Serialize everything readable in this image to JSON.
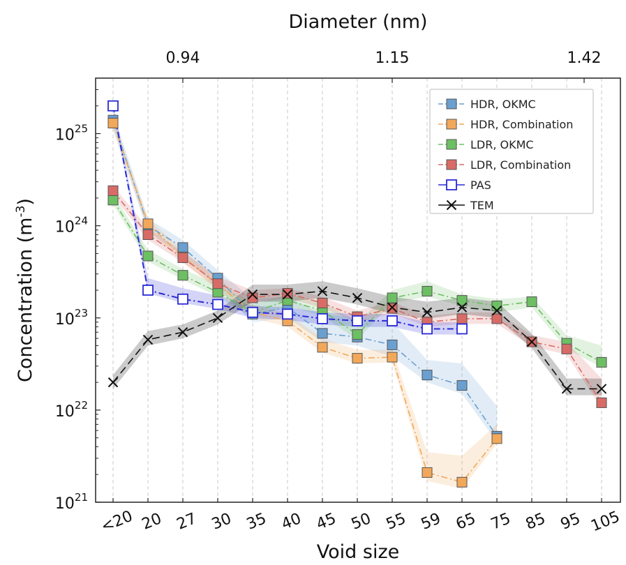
{
  "chart_data": {
    "type": "line",
    "xlabel": "Void size",
    "x2label": "Diameter (nm)",
    "ylabel_base": "Concentration (m",
    "ylabel_exp": "-3",
    "ylabel_close": ")",
    "categories": [
      "<20",
      "20",
      "27",
      "30",
      "35",
      "40",
      "45",
      "50",
      "55",
      "59",
      "65",
      "75",
      "85",
      "95",
      "105"
    ],
    "top_ticks": [
      {
        "label": "0.94",
        "category_index": 2
      },
      {
        "label": "1.15",
        "category_index": 8
      },
      {
        "label": "1.42",
        "category_index": 13.5
      }
    ],
    "y_scale": "log",
    "ylim": [
      1e+21,
      4e+25
    ],
    "y_ticks": [
      {
        "base": "10",
        "exp": "21",
        "value": 1e+21
      },
      {
        "base": "10",
        "exp": "22",
        "value": 1e+22
      },
      {
        "base": "10",
        "exp": "23",
        "value": 1e+23
      },
      {
        "base": "10",
        "exp": "24",
        "value": 1e+24
      },
      {
        "base": "10",
        "exp": "25",
        "value": 1e+25
      }
    ],
    "grid": "vertical dashed",
    "legend_position": "top-right",
    "series": [
      {
        "name": "HDR, OKMC",
        "color": "#6a9fd0",
        "marker": "filled-square",
        "line": "dash-dot",
        "values": [
          1.4e+25,
          1e+24,
          5.8e+23,
          2.7e+23,
          1.1e+23,
          1.3e+23,
          6.8e+22,
          6.2e+22,
          5.1e+22,
          2.4e+22,
          1.85e+22,
          5.2e+21,
          null,
          null,
          null
        ],
        "band_upper": [
          1.7e+25,
          1.2e+24,
          7e+23,
          3.3e+23,
          1.6e+23,
          1.7e+23,
          1.1e+23,
          1e+23,
          9e+22,
          3.5e+22,
          3.2e+22,
          1.1e+22,
          null,
          null,
          null
        ],
        "band_lower": [
          1.1e+25,
          8.5e+23,
          4.8e+23,
          2.1e+23,
          9e+22,
          1e+23,
          5.5e+22,
          5e+22,
          3.8e+22,
          2e+22,
          1.5e+22,
          4.5e+21,
          null,
          null,
          null
        ]
      },
      {
        "name": "HDR, Combination",
        "color": "#f2a85a",
        "marker": "filled-square",
        "line": "dash-dot",
        "values": [
          1.3e+25,
          1.05e+24,
          4.6e+23,
          2.3e+23,
          1.15e+23,
          9.3e+22,
          4.8e+22,
          3.65e+22,
          3.75e+22,
          2.1e+21,
          1.65e+21,
          4.9e+21,
          null,
          null,
          null
        ],
        "band_upper": [
          1.45e+25,
          1.2e+24,
          5.4e+23,
          2.7e+23,
          1.4e+23,
          1.1e+23,
          6e+22,
          4.5e+22,
          4.5e+22,
          3.5e+21,
          3.2e+21,
          7e+21,
          null,
          null,
          null
        ],
        "band_lower": [
          1.15e+25,
          9e+23,
          4e+23,
          2e+23,
          1e+23,
          8e+22,
          4.2e+22,
          3.2e+22,
          3.3e+22,
          1.7e+21,
          1.4e+21,
          4.3e+21,
          null,
          null,
          null
        ]
      },
      {
        "name": "LDR, OKMC",
        "color": "#6dbf63",
        "marker": "filled-square",
        "line": "dash-dot",
        "values": [
          1.9e+24,
          4.7e+23,
          2.9e+23,
          1.9e+23,
          1.15e+23,
          1.55e+23,
          1.2e+23,
          6.6e+22,
          1.65e+23,
          1.95e+23,
          1.55e+23,
          1.35e+23,
          1.5e+23,
          5.3e+22,
          3.3e+22
        ],
        "band_upper": [
          2.2e+24,
          5.5e+23,
          3.4e+23,
          2.3e+23,
          1.4e+23,
          1.8e+23,
          1.5e+23,
          9e+22,
          2e+23,
          2.5e+23,
          1.8e+23,
          1.6e+23,
          1.7e+23,
          6.5e+22,
          5e+22
        ],
        "band_lower": [
          1.7e+24,
          4.1e+23,
          2.6e+23,
          1.7e+23,
          1e+23,
          1.35e+23,
          1.05e+23,
          5.8e+22,
          1.45e+23,
          1.7e+23,
          1.35e+23,
          1.15e+23,
          1.3e+23,
          4.6e+22,
          2.9e+22
        ]
      },
      {
        "name": "LDR, Combination",
        "color": "#d86b66",
        "marker": "filled-square",
        "line": "dash-dot",
        "values": [
          2.4e+24,
          8e+23,
          4.5e+23,
          2.35e+23,
          1.65e+23,
          1.85e+23,
          1.45e+23,
          1.03e+23,
          1.27e+23,
          9e+22,
          9.8e+22,
          9.8e+22,
          5.5e+22,
          4.6e+22,
          1.2e+22
        ],
        "band_upper": [
          2.7e+24,
          9.5e+23,
          5.2e+23,
          2.8e+23,
          2e+23,
          2.1e+23,
          1.7e+23,
          1.2e+23,
          1.5e+23,
          1.05e+23,
          1.15e+23,
          1.15e+23,
          6.5e+22,
          5.5e+22,
          2.2e+22
        ],
        "band_lower": [
          2.1e+24,
          7e+23,
          4e+23,
          2.1e+23,
          1.45e+23,
          1.65e+23,
          1.28e+23,
          9e+22,
          1.12e+23,
          8e+22,
          8.6e+22,
          8.6e+22,
          4.9e+22,
          4e+22,
          1.05e+22
        ]
      },
      {
        "name": "PAS",
        "color": "#2a2ad6",
        "marker": "open-square",
        "line": "dash-dot",
        "values": [
          2e+25,
          2e+23,
          1.6e+23,
          1.4e+23,
          1.15e+23,
          1.1e+23,
          9.8e+22,
          9.3e+22,
          9.3e+22,
          7.6e+22,
          7.6e+22,
          null,
          null,
          null,
          null
        ],
        "band_upper": [
          2.2e+25,
          2.7e+23,
          2.1e+23,
          1.75e+23,
          1.35e+23,
          1.3e+23,
          1.15e+23,
          1.1e+23,
          1.1e+23,
          9e+22,
          9e+22,
          null,
          null,
          null,
          null
        ],
        "band_lower": [
          1.8e+25,
          1.85e+23,
          1.45e+23,
          1.25e+23,
          1e+23,
          9.5e+22,
          8.5e+22,
          8e+22,
          8e+22,
          6.6e+22,
          6.6e+22,
          null,
          null,
          null,
          null
        ]
      },
      {
        "name": "TEM",
        "color": "#111111",
        "marker": "cross",
        "line": "dashed",
        "values": [
          2e+22,
          5.8e+22,
          7e+22,
          1e+23,
          1.8e+23,
          1.8e+23,
          1.95e+23,
          1.65e+23,
          1.3e+23,
          1.15e+23,
          1.3e+23,
          1.2e+23,
          5.5e+22,
          1.7e+22,
          1.7e+22
        ],
        "band_upper": [
          2.4e+22,
          7.2e+22,
          8.5e+22,
          1.2e+23,
          2.3e+23,
          2.3e+23,
          2.5e+23,
          2.1e+23,
          1.7e+23,
          1.5e+23,
          1.65e+23,
          1.5e+23,
          6.8e+22,
          2.2e+22,
          2.2e+22
        ],
        "band_lower": [
          1.7e+22,
          5e+22,
          6e+22,
          8.5e+22,
          1.5e+23,
          1.5e+23,
          1.65e+23,
          1.4e+23,
          1.1e+23,
          9.8e+22,
          1.1e+23,
          1e+23,
          4.7e+22,
          1.45e+22,
          1.45e+22
        ]
      }
    ]
  }
}
